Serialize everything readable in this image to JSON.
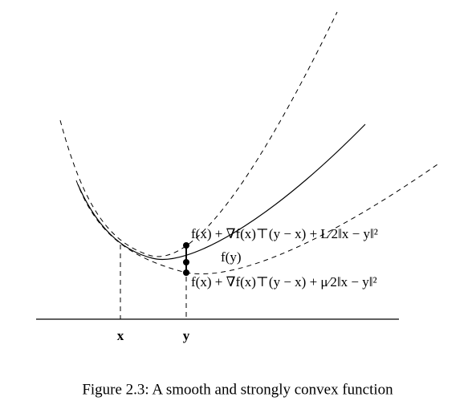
{
  "figure": {
    "x_label": "x",
    "y_label": "y",
    "upper_bound_label": "f(x) + ∇f(x)⊤(y − x) + L⁄2‖x − y‖²",
    "function_label": "f(y)",
    "lower_bound_label": "f(x) + ∇f(x)⊤(y − x) + μ⁄2‖x − y‖²",
    "caption": "Figure 2.3: A smooth and strongly convex function"
  }
}
